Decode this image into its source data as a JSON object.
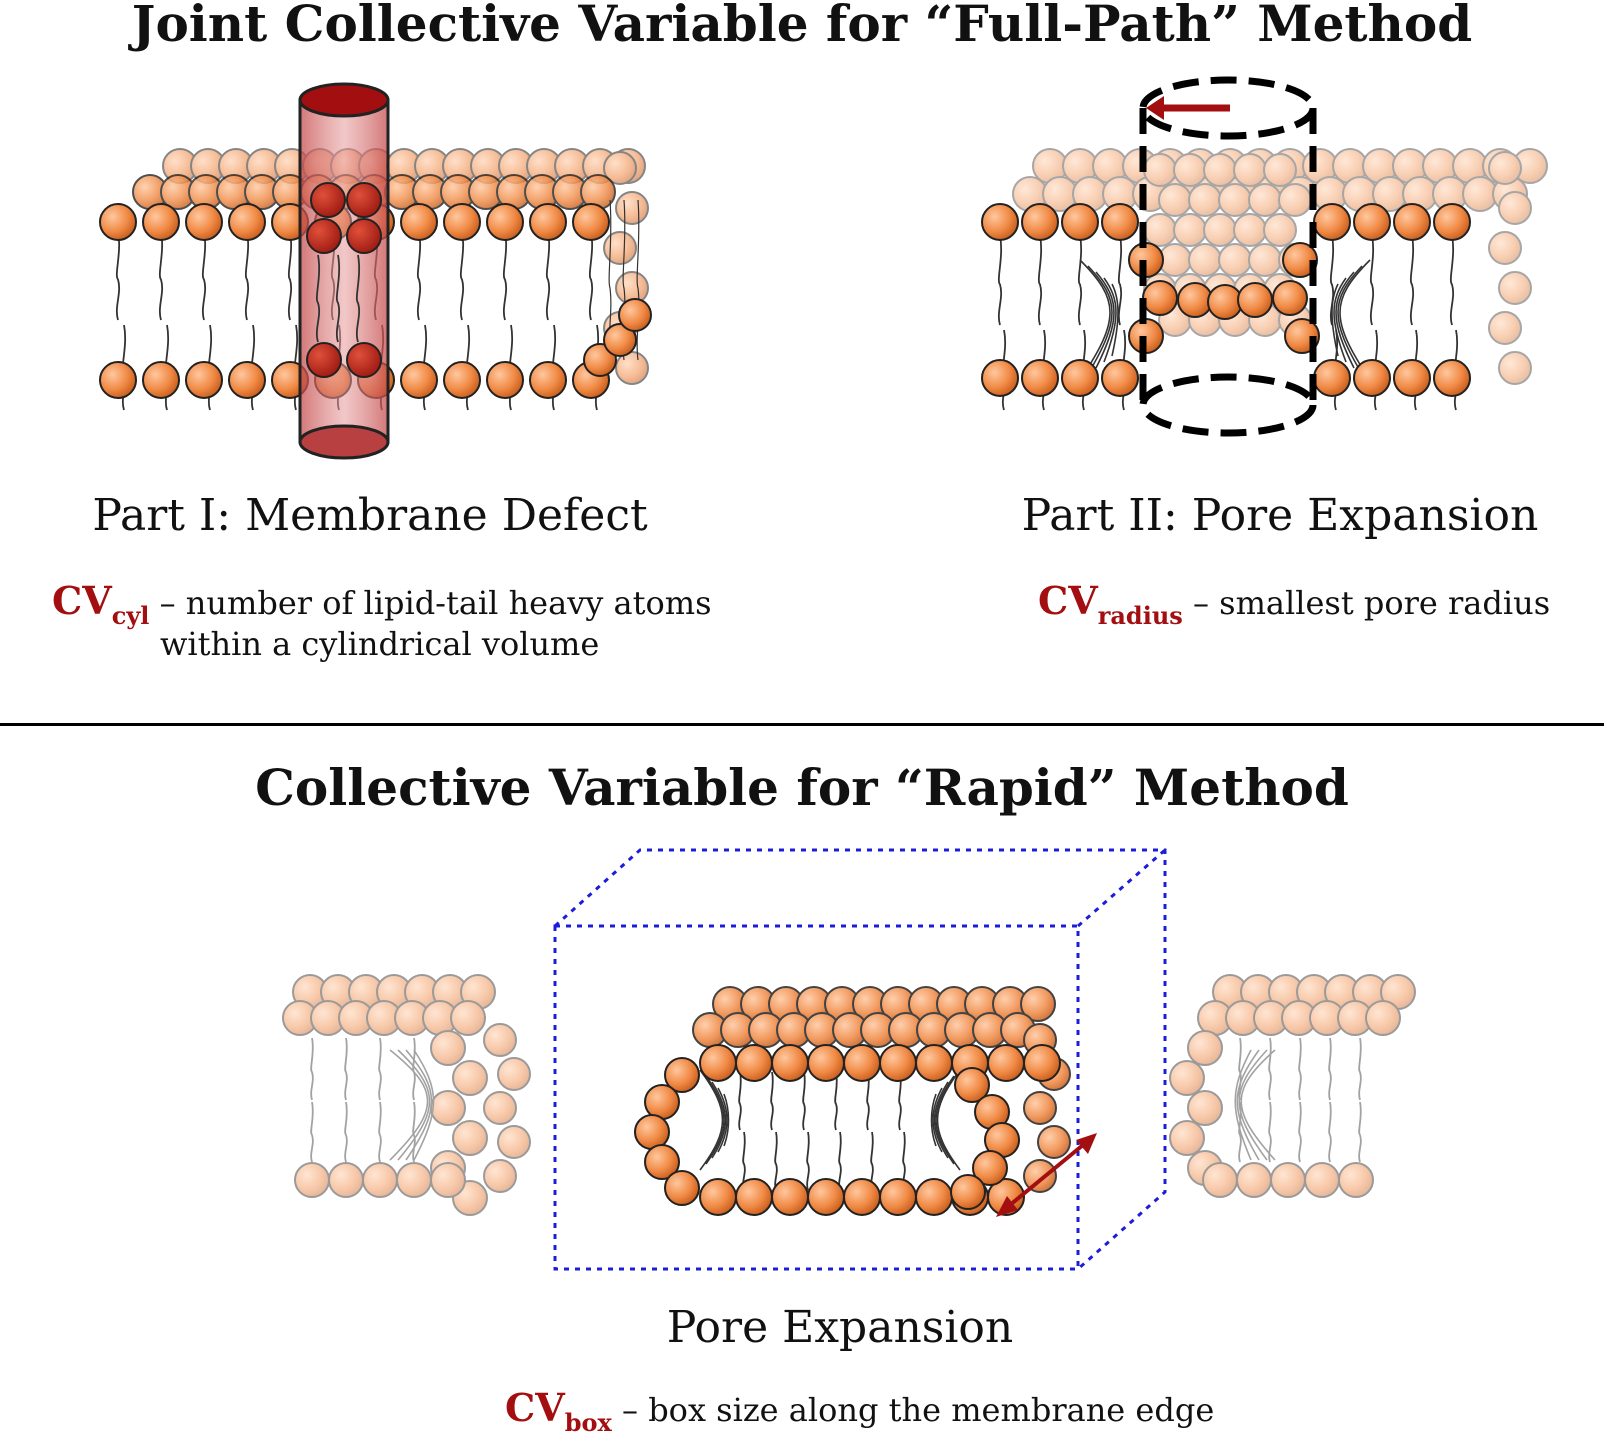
{
  "top": {
    "title": "Joint Collective Variable for “Full-Path” Method",
    "part1": {
      "label": "Part I: Membrane Defect",
      "cv_main": "CV",
      "cv_sub": "cyl",
      "cv_desc_1": " – number of lipid-tail heavy atoms",
      "cv_desc_2": "within a cylindrical volume"
    },
    "part2": {
      "label": "Part II: Pore Expansion",
      "cv_main": "CV",
      "cv_sub": "radius",
      "cv_desc": " – smallest pore radius"
    }
  },
  "bottom": {
    "title": "Collective Variable for “Rapid” Method",
    "label": "Pore Expansion",
    "cv_main": "CV",
    "cv_sub": "box",
    "cv_desc": " – box size along the membrane edge"
  },
  "colors": {
    "lipid_head": "#ee7f3a",
    "cv_red": "#a30f10",
    "box_blue": "#1c1cdb"
  }
}
